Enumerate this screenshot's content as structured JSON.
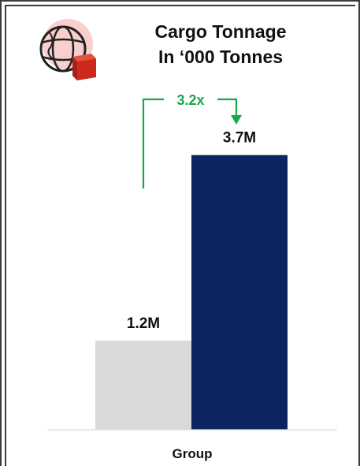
{
  "title_line1": "Cargo Tonnage",
  "title_line2": "In ‘000 Tonnes",
  "colors": {
    "previous_bar": "#d9d9d9",
    "current_bar": "#0c2461",
    "arrow": "#1aa64a",
    "logo_box": "#cc2a1c"
  },
  "logo_icon": "globe-with-box-icon",
  "chart_data": {
    "type": "bar",
    "categories": [
      "Group"
    ],
    "series": [
      {
        "values": [
          1.2
        ],
        "label": "1.2M"
      },
      {
        "values": [
          3.7
        ],
        "label": "3.7M"
      }
    ],
    "annotations": [
      {
        "text": "3.2x"
      }
    ],
    "ylim": [
      0,
      4.1
    ]
  }
}
